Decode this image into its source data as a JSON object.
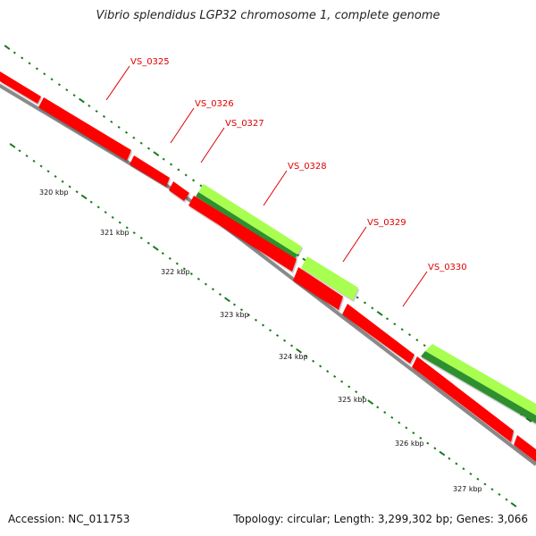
{
  "title": "Vibrio splendidus LGP32 chromosome 1, complete genome",
  "accession_text": "Accession: NC_011753",
  "summary_text": "Topology: circular; Length: 3,299,302 bp; Genes: 3,066",
  "colors": {
    "reverse_gene": "#ff0000",
    "reverse_gene_shadow": "#b00000",
    "forward_gene_light": "#a8ff50",
    "forward_gene_dark": "#2f8f2f",
    "backbone": "#8a8a8a",
    "tick": "#1a7a1a",
    "label": "#e00000"
  },
  "scale_labels": [
    "320 kbp",
    "321 kbp",
    "322 kbp",
    "323 kbp",
    "324 kbp",
    "325 kbp",
    "326 kbp",
    "327 kbp"
  ],
  "gene_labels": [
    {
      "name": "VS_0325"
    },
    {
      "name": "VS_0326"
    },
    {
      "name": "VS_0327"
    },
    {
      "name": "VS_0328"
    },
    {
      "name": "VS_0329"
    },
    {
      "name": "VS_0330"
    }
  ]
}
